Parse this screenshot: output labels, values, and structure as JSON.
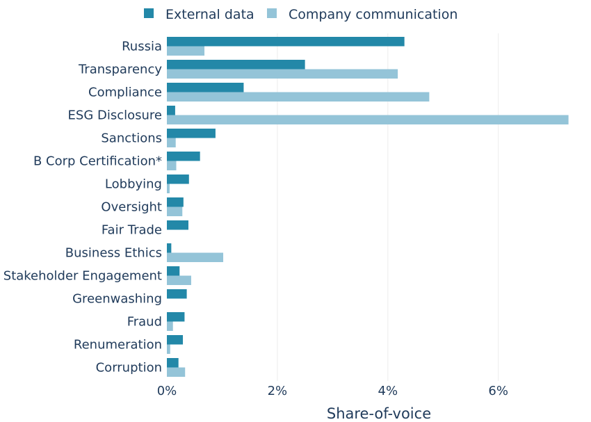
{
  "chart_data": {
    "type": "bar",
    "orientation": "horizontal",
    "categories": [
      "Russia",
      "Transparency",
      "Compliance",
      "ESG Disclosure",
      "Sanctions",
      "B Corp Certification*",
      "Lobbying",
      "Oversight",
      "Fair Trade",
      "Business Ethics",
      "Stakeholder Engagement",
      "Greenwashing",
      "Fraud",
      "Renumeration",
      "Corruption"
    ],
    "series": [
      {
        "name": "External data",
        "color": "#2388a8",
        "values": [
          4.3,
          2.5,
          1.39,
          0.15,
          0.88,
          0.6,
          0.4,
          0.3,
          0.39,
          0.08,
          0.23,
          0.36,
          0.32,
          0.29,
          0.21
        ]
      },
      {
        "name": "Company communication",
        "color": "#94c4d8",
        "values": [
          0.68,
          4.18,
          4.75,
          7.27,
          0.16,
          0.17,
          0.05,
          0.28,
          0.0,
          1.02,
          0.44,
          0.0,
          0.11,
          0.06,
          0.33
        ]
      }
    ],
    "xlabel": "Share-of-voice",
    "ylabel": "",
    "xlim": [
      0,
      7.3
    ],
    "xticks": [
      0,
      2,
      4,
      6
    ],
    "tick_format": "{v}%",
    "grid": "vertical",
    "legend": "top-center"
  }
}
